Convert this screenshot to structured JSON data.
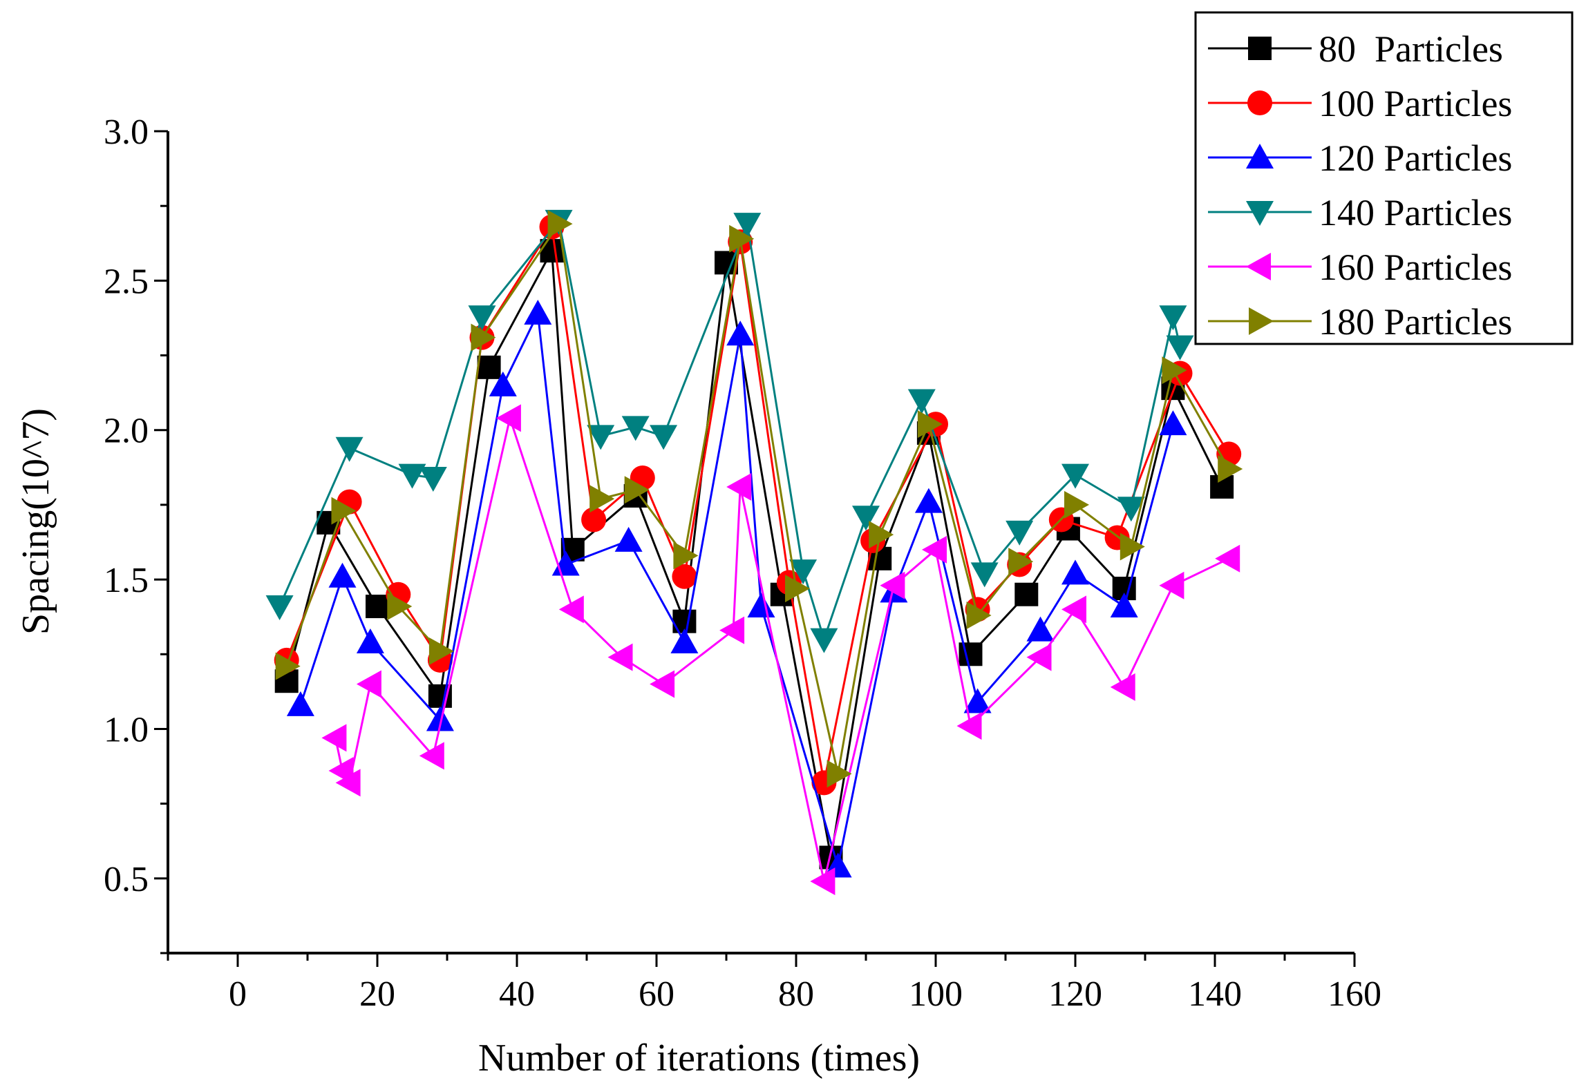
{
  "chart_data": {
    "type": "line",
    "title": "",
    "xlabel": "Number of iterations (times)",
    "ylabel": "Spacing(10^7)",
    "xlim": [
      -10,
      160
    ],
    "ylim": [
      0.25,
      3.0
    ],
    "xticks": [
      0,
      20,
      40,
      60,
      80,
      100,
      120,
      140,
      160
    ],
    "yticks": [
      0.5,
      1.0,
      1.5,
      2.0,
      2.5,
      3.0
    ],
    "ytick_labels": [
      "0.5",
      "1.0",
      "1.5",
      "2.0",
      "2.5",
      "3.0"
    ],
    "legend_position": "top-right",
    "grid": false,
    "series": [
      {
        "name": "80  Particles",
        "color": "#000000",
        "marker": "square",
        "x": [
          7,
          13,
          20,
          29,
          36,
          45,
          48,
          57,
          64,
          70,
          78,
          85,
          92,
          99,
          105,
          113,
          119,
          127,
          134,
          141
        ],
        "y": [
          1.16,
          1.69,
          1.41,
          1.11,
          2.21,
          2.6,
          1.6,
          1.78,
          1.36,
          2.56,
          1.45,
          0.57,
          1.57,
          1.99,
          1.25,
          1.45,
          1.67,
          1.47,
          2.14,
          1.81
        ]
      },
      {
        "name": "100 Particles",
        "color": "#ff0000",
        "marker": "circle",
        "x": [
          7,
          16,
          23,
          29,
          35,
          45,
          51,
          58,
          64,
          72,
          79,
          84,
          91,
          100,
          106,
          112,
          118,
          126,
          135,
          142
        ],
        "y": [
          1.23,
          1.76,
          1.45,
          1.23,
          2.31,
          2.68,
          1.7,
          1.84,
          1.51,
          2.63,
          1.49,
          0.82,
          1.63,
          2.02,
          1.4,
          1.55,
          1.7,
          1.64,
          2.19,
          1.92
        ]
      },
      {
        "name": "120 Particles",
        "color": "#0000ff",
        "marker": "triangle-up",
        "x": [
          9,
          15,
          19,
          29,
          38,
          43,
          47,
          56,
          64,
          72,
          75,
          86,
          94,
          99,
          106,
          115,
          120,
          127,
          134
        ],
        "y": [
          1.08,
          1.51,
          1.29,
          1.03,
          2.15,
          2.39,
          1.55,
          1.63,
          1.29,
          2.32,
          1.41,
          0.54,
          1.46,
          1.76,
          1.09,
          1.33,
          1.52,
          1.41,
          2.02
        ]
      },
      {
        "name": "140 Particles",
        "color": "#008080",
        "marker": "triangle-down",
        "x": [
          6,
          16,
          25,
          28,
          35,
          46,
          52,
          57,
          61,
          73,
          81,
          84,
          90,
          98,
          107,
          112,
          120,
          128,
          134,
          135
        ],
        "y": [
          1.41,
          1.94,
          1.85,
          1.84,
          2.38,
          2.7,
          1.98,
          2.01,
          1.98,
          2.69,
          1.53,
          1.3,
          1.71,
          2.1,
          1.52,
          1.66,
          1.85,
          1.74,
          2.38,
          2.28
        ]
      },
      {
        "name": "160 Particles",
        "color": "#ff00ff",
        "marker": "triangle-left",
        "x": [
          14,
          15,
          16,
          19,
          28,
          39,
          48,
          55,
          61,
          71,
          72,
          84,
          94,
          100,
          105,
          115,
          120,
          127,
          134,
          142
        ],
        "y": [
          0.97,
          0.86,
          0.82,
          1.15,
          0.91,
          2.04,
          1.4,
          1.24,
          1.15,
          1.33,
          1.81,
          0.49,
          1.48,
          1.6,
          1.01,
          1.24,
          1.4,
          1.14,
          1.48,
          1.57
        ]
      },
      {
        "name": "180 Particles",
        "color": "#808000",
        "marker": "triangle-right",
        "x": [
          7,
          15,
          23,
          29,
          35,
          46,
          52,
          57,
          64,
          72,
          80,
          86,
          92,
          99,
          106,
          112,
          120,
          128,
          134,
          142
        ],
        "y": [
          1.21,
          1.73,
          1.41,
          1.26,
          2.31,
          2.69,
          1.77,
          1.8,
          1.58,
          2.64,
          1.47,
          0.85,
          1.65,
          2.02,
          1.38,
          1.56,
          1.75,
          1.61,
          2.2,
          1.87
        ]
      }
    ]
  }
}
